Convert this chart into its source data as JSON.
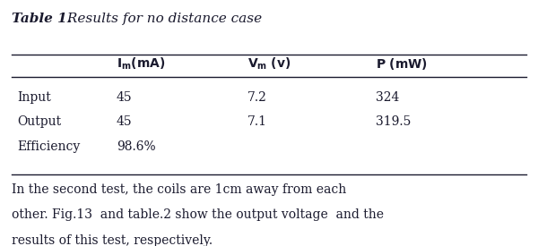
{
  "title_bold": "Table 1.",
  "title_italic": " Results for no distance case",
  "col_headers": [
    "I_m(mA)",
    "V_m (v)",
    "P (mW)"
  ],
  "row_labels": [
    "Input",
    "Output",
    "Efficiency"
  ],
  "table_data": [
    [
      "45",
      "7.2",
      "324"
    ],
    [
      "45",
      "7.1",
      "319.5"
    ],
    [
      "98.6%",
      "",
      ""
    ]
  ],
  "para_lines": [
    "In the second test, the coils are 1cm away from each",
    "other. Fig.13  and table.2 show the output voltage  and the",
    "results of this test, respectively."
  ],
  "bg_color": "#ffffff",
  "text_color": "#1a1a2e",
  "font_size_title": 11,
  "font_size_table": 10,
  "font_size_para": 10
}
